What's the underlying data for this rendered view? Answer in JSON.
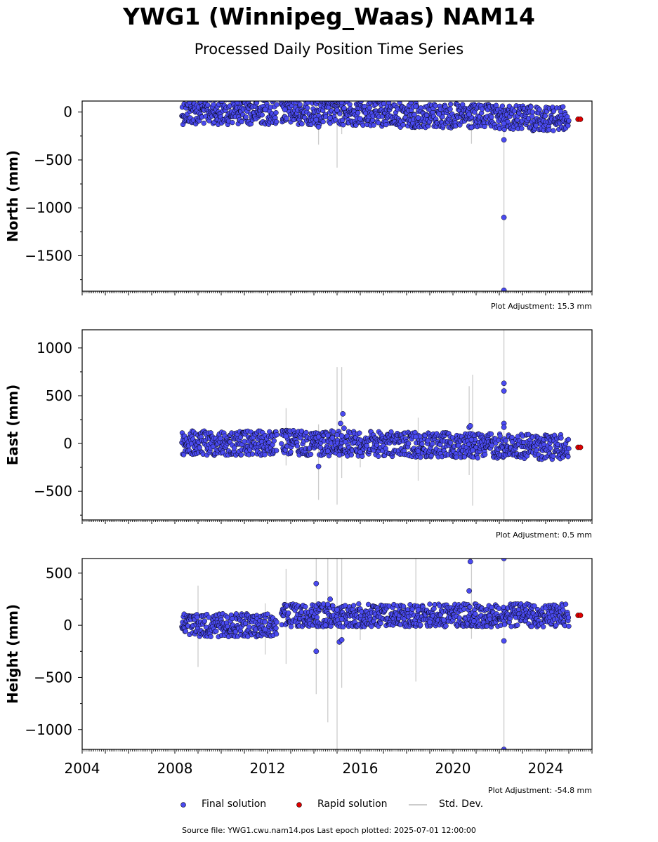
{
  "page": {
    "title": "YWG1 (Winnipeg_Waas) NAM14",
    "subtitle": "Processed Daily Position Time Series",
    "source": "Source file: YWG1.cwu.nam14.pos  Last epoch plotted: 2025-07-01 12:00:00"
  },
  "legend": {
    "final": "Final solution",
    "rapid": "Rapid solution",
    "stddev": "Std. Dev."
  },
  "colors": {
    "final": "#4a4af0",
    "rapid": "#e00000",
    "stddev": "#cccccc",
    "edge": "#000000"
  },
  "chart_data": [
    {
      "type": "scatter",
      "ylabel": "North (mm)",
      "xlim": [
        2004,
        2026
      ],
      "ylim": [
        -1870,
        115
      ],
      "yticks": [
        0,
        -500,
        -1000,
        -1500
      ],
      "xticks": [],
      "adjustment": "Plot Adjustment: 15.3 mm",
      "segments": [
        {
          "x": [
            2008.3,
            2012.4
          ],
          "y": [
            0,
            0
          ]
        },
        {
          "x": [
            2012.6,
            2025.0
          ],
          "y": [
            5,
            -75
          ]
        }
      ],
      "outliers": [
        [
          2011.9,
          25
        ],
        [
          2012.75,
          25
        ],
        [
          2014.1,
          -80
        ],
        [
          2014.2,
          -155
        ],
        [
          2014.7,
          -60
        ],
        [
          2015.0,
          20
        ],
        [
          2015.2,
          100
        ],
        [
          2015.3,
          40
        ],
        [
          2016.0,
          -70
        ],
        [
          2018.4,
          60
        ],
        [
          2018.5,
          -60
        ],
        [
          2019.4,
          -20
        ],
        [
          2020.7,
          -25
        ],
        [
          2020.8,
          -160
        ],
        [
          2022.2,
          -120
        ],
        [
          2022.2,
          -290
        ],
        [
          2022.2,
          -1100
        ],
        [
          2022.2,
          -1860
        ]
      ],
      "stddev": [
        [
          2012.7,
          -120,
          40
        ],
        [
          2014.2,
          -340,
          20
        ],
        [
          2015.0,
          -580,
          60
        ],
        [
          2015.2,
          -230,
          100
        ],
        [
          2018.4,
          -190,
          40
        ],
        [
          2020.8,
          -330,
          0
        ],
        [
          2022.2,
          -1870,
          100
        ]
      ],
      "rapid": [
        [
          2025.4,
          -75
        ],
        [
          2025.5,
          -75
        ]
      ]
    },
    {
      "type": "scatter",
      "ylabel": "East (mm)",
      "xlim": [
        2004,
        2026
      ],
      "ylim": [
        -800,
        1190
      ],
      "yticks": [
        1000,
        500,
        0,
        -500
      ],
      "xticks": [],
      "adjustment": "Plot Adjustment: 0.5 mm",
      "segments": [
        {
          "x": [
            2008.3,
            2012.4
          ],
          "y": [
            0,
            0
          ]
        },
        {
          "x": [
            2012.6,
            2025.0
          ],
          "y": [
            10,
            -40
          ]
        }
      ],
      "outliers": [
        [
          2012.8,
          75
        ],
        [
          2014.1,
          60
        ],
        [
          2014.2,
          70
        ],
        [
          2014.2,
          -240
        ],
        [
          2014.6,
          -80
        ],
        [
          2014.6,
          85
        ],
        [
          2014.8,
          60
        ],
        [
          2015.0,
          90
        ],
        [
          2015.1,
          -120
        ],
        [
          2015.15,
          210
        ],
        [
          2015.2,
          80
        ],
        [
          2015.25,
          310
        ],
        [
          2015.3,
          160
        ],
        [
          2016.0,
          -90
        ],
        [
          2018.4,
          70
        ],
        [
          2018.5,
          -80
        ],
        [
          2020.7,
          170
        ],
        [
          2020.75,
          185
        ],
        [
          2020.8,
          40
        ],
        [
          2020.85,
          -70
        ],
        [
          2022.2,
          630
        ],
        [
          2022.2,
          550
        ],
        [
          2022.2,
          210
        ],
        [
          2022.2,
          170
        ]
      ],
      "stddev": [
        [
          2009.0,
          -120,
          120
        ],
        [
          2012.8,
          -230,
          370
        ],
        [
          2014.2,
          -590,
          200
        ],
        [
          2015.0,
          -640,
          800
        ],
        [
          2015.2,
          -360,
          800
        ],
        [
          2016.0,
          -250,
          80
        ],
        [
          2018.5,
          -390,
          270
        ],
        [
          2020.7,
          -330,
          600
        ],
        [
          2020.85,
          -650,
          720
        ],
        [
          2022.2,
          -800,
          1190
        ]
      ],
      "rapid": [
        [
          2025.4,
          -40
        ],
        [
          2025.5,
          -40
        ]
      ]
    },
    {
      "type": "scatter",
      "ylabel": "Height (mm)",
      "xlim": [
        2004,
        2026
      ],
      "ylim": [
        -1190,
        640
      ],
      "yticks": [
        500,
        0,
        -500,
        -1000
      ],
      "xticks": [
        2004,
        2008,
        2012,
        2016,
        2020,
        2024
      ],
      "adjustment": "Plot Adjustment: -54.8 mm",
      "segments": [
        {
          "x": [
            2008.3,
            2012.4
          ],
          "y": [
            0,
            0
          ]
        },
        {
          "x": [
            2012.6,
            2025.0
          ],
          "y": [
            95,
            95
          ]
        }
      ],
      "outliers": [
        [
          2011.9,
          -40
        ],
        [
          2014.1,
          400
        ],
        [
          2014.1,
          -250
        ],
        [
          2014.5,
          0
        ],
        [
          2014.6,
          200
        ],
        [
          2014.7,
          250
        ],
        [
          2015.0,
          150
        ],
        [
          2015.1,
          -160
        ],
        [
          2015.2,
          -140
        ],
        [
          2015.2,
          60
        ],
        [
          2018.5,
          150
        ],
        [
          2019.0,
          30
        ],
        [
          2019.6,
          50
        ],
        [
          2020.7,
          330
        ],
        [
          2020.75,
          610
        ],
        [
          2020.9,
          40
        ],
        [
          2022.2,
          -150
        ],
        [
          2022.2,
          640
        ],
        [
          2022.2,
          -1190
        ]
      ],
      "stddev": [
        [
          2009.0,
          -400,
          380
        ],
        [
          2011.9,
          -280,
          210
        ],
        [
          2012.8,
          -370,
          540
        ],
        [
          2014.1,
          -660,
          640
        ],
        [
          2014.6,
          -930,
          640
        ],
        [
          2015.0,
          -1190,
          640
        ],
        [
          2015.2,
          -600,
          640
        ],
        [
          2016.0,
          -140,
          240
        ],
        [
          2018.4,
          -540,
          640
        ],
        [
          2020.8,
          -130,
          640
        ],
        [
          2022.2,
          -1190,
          640
        ]
      ],
      "rapid": [
        [
          2025.4,
          95
        ],
        [
          2025.5,
          95
        ]
      ]
    }
  ]
}
